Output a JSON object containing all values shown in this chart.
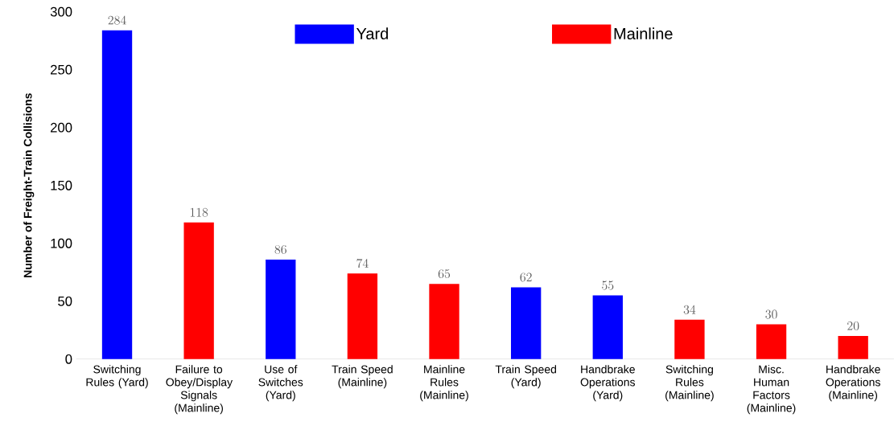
{
  "chart_data": {
    "type": "bar",
    "ylabel": "Number of Freight-Train Collisions",
    "categories": [
      "Switching Rules (Yard)",
      "Failure to Obey/Display Signals (Mainline)",
      "Use of Switches (Yard)",
      "Train Speed (Mainline)",
      "Mainline Rules (Mainline)",
      "Train Speed (Yard)",
      "Handbrake Operations (Yard)",
      "Switching Rules (Mainline)",
      "Misc. Human Factors (Mainline)",
      "Handbrake Operations (Mainline)"
    ],
    "series": [
      {
        "name": "Yard",
        "color": "#0000ff",
        "values": [
          284,
          null,
          86,
          null,
          null,
          62,
          55,
          null,
          null,
          null
        ]
      },
      {
        "name": "Mainline",
        "color": "#ff0000",
        "values": [
          null,
          118,
          null,
          74,
          65,
          null,
          null,
          34,
          30,
          20
        ]
      }
    ],
    "stacked": true,
    "data_labels": true,
    "legend": "top",
    "ylim": [
      0,
      300
    ],
    "yticks": [
      0,
      50,
      100,
      150,
      200,
      250,
      300
    ]
  }
}
